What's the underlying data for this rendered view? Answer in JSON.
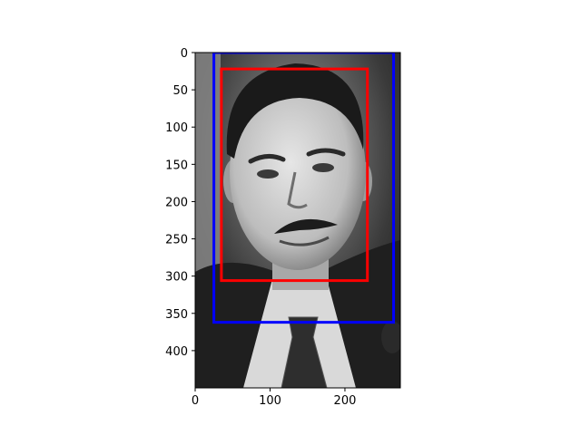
{
  "chart_data": {
    "type": "image",
    "title": "",
    "xlabel": "",
    "ylabel": "",
    "image_extent": {
      "width": 274,
      "height": 450
    },
    "xlim": [
      0,
      274
    ],
    "ylim": [
      450,
      0
    ],
    "xticks": [
      0,
      100,
      200
    ],
    "yticks": [
      0,
      50,
      100,
      150,
      200,
      250,
      300,
      350,
      400
    ],
    "grid": false,
    "legend": "none",
    "image_description": "grayscale photo of a man in a dark suit and tie",
    "boxes": [
      {
        "color": "#0000ff",
        "x0": 25,
        "y0": 0,
        "x1": 265,
        "y1": 362
      },
      {
        "color": "#ff0000",
        "x0": 35,
        "y0": 22,
        "x1": 230,
        "y1": 306
      }
    ]
  }
}
